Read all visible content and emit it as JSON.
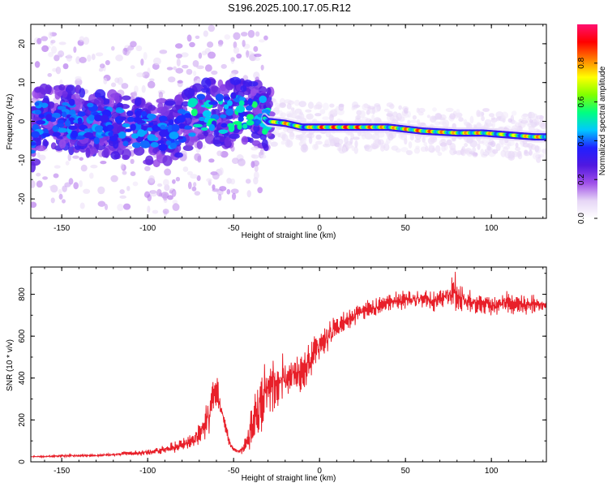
{
  "title": "S196.2025.100.17.05.R12",
  "chart_data": [
    {
      "type": "heatmap",
      "name": "spectrogram",
      "xlabel": "Height of straight line (km)",
      "ylabel": "Frequency (Hz)",
      "xlim": [
        -168,
        132
      ],
      "ylim": [
        -25,
        25
      ],
      "x_ticks": [
        -150,
        -100,
        -50,
        0,
        50,
        100
      ],
      "x_tick_labels": [
        "-150",
        "-100",
        "-50",
        "0",
        "50",
        "100"
      ],
      "y_ticks": [
        20,
        10,
        0,
        -10,
        -20
      ],
      "y_tick_labels": [
        "20",
        "10",
        "0",
        "-10",
        "-20"
      ],
      "colorbar": {
        "label": "Normalized spectral amplitude",
        "range": [
          0,
          1
        ],
        "ticks": [
          0.0,
          0.2,
          0.4,
          0.6,
          0.8
        ],
        "tick_labels": [
          "0.0",
          "0.2",
          "0.4",
          "0.6",
          "0.8"
        ],
        "colors": [
          "#ffffff",
          "#e6d6f6",
          "#a050e8",
          "#5018e0",
          "#2020ff",
          "#00c8ff",
          "#00ff80",
          "#80ff00",
          "#ffff00",
          "#ff8000",
          "#ff0000",
          "#ff1070"
        ]
      },
      "ridge": [
        {
          "x": -165,
          "f": 0.5,
          "a": 0.5
        },
        {
          "x": -150,
          "f": 1.0,
          "a": 0.45
        },
        {
          "x": -130,
          "f": -0.5,
          "a": 0.45
        },
        {
          "x": -110,
          "f": -1.5,
          "a": 0.5
        },
        {
          "x": -95,
          "f": -3.0,
          "a": 0.5
        },
        {
          "x": -85,
          "f": -2.0,
          "a": 0.55
        },
        {
          "x": -75,
          "f": 0.5,
          "a": 0.55
        },
        {
          "x": -65,
          "f": 3.0,
          "a": 0.6
        },
        {
          "x": -55,
          "f": 1.5,
          "a": 0.6
        },
        {
          "x": -45,
          "f": 3.0,
          "a": 0.55
        },
        {
          "x": -35,
          "f": 2.0,
          "a": 0.5
        },
        {
          "x": -30,
          "f": 0.0,
          "a": 0.7
        },
        {
          "x": -20,
          "f": -0.5,
          "a": 0.85
        },
        {
          "x": -10,
          "f": -1.5,
          "a": 0.7
        },
        {
          "x": 0,
          "f": -1.5,
          "a": 0.9
        },
        {
          "x": 20,
          "f": -1.5,
          "a": 0.95
        },
        {
          "x": 40,
          "f": -1.5,
          "a": 0.8
        },
        {
          "x": 60,
          "f": -2.5,
          "a": 0.9
        },
        {
          "x": 80,
          "f": -3.0,
          "a": 0.8
        },
        {
          "x": 95,
          "f": -3.0,
          "a": 0.85
        },
        {
          "x": 110,
          "f": -3.5,
          "a": 0.7
        },
        {
          "x": 125,
          "f": -4.0,
          "a": 0.85
        },
        {
          "x": 132,
          "f": -4.0,
          "a": 0.8
        }
      ]
    },
    {
      "type": "line",
      "name": "snr",
      "xlabel": "Height of straight line (km)",
      "ylabel": "SNR (10 * v/v)",
      "xlim": [
        -168,
        132
      ],
      "ylim": [
        0,
        930
      ],
      "x_ticks": [
        -150,
        -100,
        -50,
        0,
        50,
        100
      ],
      "x_tick_labels": [
        "-150",
        "-100",
        "-50",
        "0",
        "50",
        "100"
      ],
      "y_ticks": [
        0,
        200,
        400,
        600,
        800
      ],
      "y_tick_labels": [
        "0",
        "200",
        "400",
        "600",
        "800"
      ],
      "series": [
        {
          "color": "#e8202a",
          "x": [
            -168,
            -160,
            -150,
            -140,
            -130,
            -120,
            -110,
            -100,
            -90,
            -80,
            -75,
            -70,
            -65,
            -62,
            -60,
            -58,
            -55,
            -52,
            -50,
            -47,
            -45,
            -42,
            -40,
            -38,
            -35,
            -32,
            -30,
            -27,
            -25,
            -22,
            -20,
            -17,
            -15,
            -12,
            -10,
            -7,
            -5,
            -3,
            0,
            5,
            10,
            15,
            20,
            25,
            30,
            35,
            40,
            45,
            50,
            60,
            70,
            75,
            78,
            80,
            82,
            85,
            90,
            100,
            110,
            120,
            132
          ],
          "y": [
            25,
            25,
            28,
            30,
            30,
            35,
            40,
            45,
            60,
            80,
            100,
            130,
            200,
            300,
            340,
            260,
            170,
            90,
            60,
            50,
            60,
            90,
            150,
            200,
            250,
            300,
            350,
            380,
            330,
            420,
            380,
            400,
            420,
            430,
            450,
            470,
            500,
            540,
            560,
            600,
            640,
            670,
            700,
            720,
            730,
            750,
            760,
            770,
            770,
            780,
            770,
            800,
            820,
            800,
            790,
            760,
            760,
            750,
            760,
            750,
            750
          ],
          "jitter": [
            5,
            5,
            8,
            8,
            8,
            10,
            15,
            20,
            25,
            40,
            50,
            80,
            120,
            150,
            150,
            100,
            60,
            30,
            15,
            10,
            30,
            80,
            150,
            200,
            230,
            250,
            220,
            200,
            180,
            180,
            160,
            150,
            150,
            140,
            140,
            130,
            120,
            110,
            100,
            90,
            90,
            80,
            70,
            60,
            60,
            60,
            60,
            60,
            60,
            60,
            70,
            80,
            110,
            120,
            110,
            80,
            70,
            70,
            70,
            70,
            60
          ]
        }
      ]
    }
  ]
}
